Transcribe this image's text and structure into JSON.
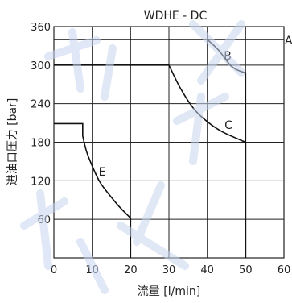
{
  "chart_data": {
    "type": "line",
    "title": "WDHE - DC",
    "xlabel": "流量 [l/min]",
    "ylabel": "进油口压力 [bar]",
    "xlim": [
      0,
      60
    ],
    "ylim": [
      0,
      360
    ],
    "xticks": [
      "0",
      "10",
      "20",
      "30",
      "40",
      "50",
      "60"
    ],
    "yticks": [
      "60",
      "120",
      "180",
      "240",
      "300",
      "360"
    ],
    "grid": true,
    "series": [
      {
        "name": "A",
        "points": [
          [
            0,
            340
          ],
          [
            60,
            340
          ]
        ]
      },
      {
        "name": "B",
        "points": [
          [
            40,
            340
          ],
          [
            43,
            323
          ],
          [
            46,
            300
          ],
          [
            48,
            292
          ],
          [
            50,
            288
          ],
          [
            50,
            0
          ]
        ]
      },
      {
        "name": "C",
        "points": [
          [
            0,
            300
          ],
          [
            30,
            300
          ],
          [
            33,
            264
          ],
          [
            36.5,
            232
          ],
          [
            40,
            212
          ],
          [
            44,
            196
          ],
          [
            50,
            180
          ],
          [
            50,
            0
          ]
        ]
      },
      {
        "name": "E",
        "points": [
          [
            0,
            209
          ],
          [
            7.5,
            209
          ],
          [
            7.5,
            190
          ],
          [
            8.5,
            166
          ],
          [
            10,
            143
          ],
          [
            12,
            118
          ],
          [
            14.5,
            98
          ],
          [
            17,
            80
          ],
          [
            20,
            62
          ],
          [
            20,
            0
          ]
        ]
      }
    ]
  }
}
